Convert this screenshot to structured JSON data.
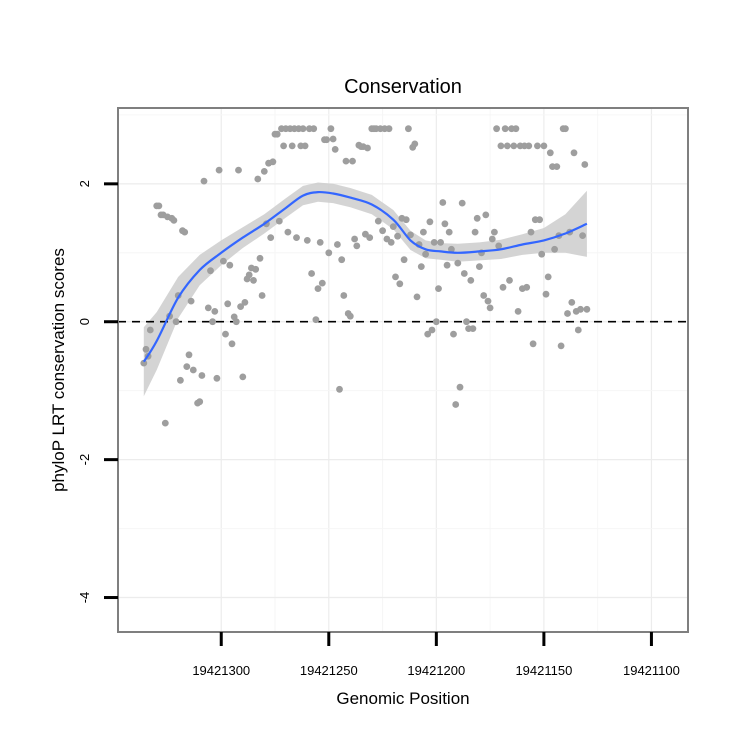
{
  "chart_data": {
    "type": "scatter",
    "title": "Conservation",
    "xlabel": "Genomic Position",
    "ylabel": "phyloP LRT conservation scores",
    "x_reversed": true,
    "xlim": [
      19421083,
      19421348
    ],
    "ylim": [
      -4.5,
      3.1
    ],
    "x_ticks": [
      19421300,
      19421250,
      19421200,
      19421150,
      19421100
    ],
    "x_tick_labels": [
      "19421300",
      "19421250",
      "19421200",
      "19421150",
      "19421100"
    ],
    "y_ticks": [
      2,
      0,
      -2,
      -4
    ],
    "y_tick_labels": [
      "2",
      "0",
      "-2",
      "-4"
    ],
    "reference_line": {
      "y": 0,
      "style": "dashed"
    },
    "grid": true,
    "colors": {
      "points": "#9e9e9e",
      "smooth": "#3366ff",
      "band": "#cccccc",
      "border": "#7f7f7f"
    },
    "points": [
      [
        19421336,
        -0.6
      ],
      [
        19421335,
        -0.4
      ],
      [
        19421334,
        -0.5
      ],
      [
        19421333,
        -0.12
      ],
      [
        19421330,
        1.68
      ],
      [
        19421329,
        1.68
      ],
      [
        19421328,
        1.55
      ],
      [
        19421327,
        1.55
      ],
      [
        19421325,
        1.52
      ],
      [
        19421326,
        -1.47
      ],
      [
        19421324,
        0.08
      ],
      [
        19421323,
        1.5
      ],
      [
        19421322,
        1.47
      ],
      [
        19421321,
        0.0
      ],
      [
        19421320,
        0.38
      ],
      [
        19421318,
        1.32
      ],
      [
        19421317,
        1.3
      ],
      [
        19421319,
        -0.85
      ],
      [
        19421316,
        -0.65
      ],
      [
        19421315,
        -0.48
      ],
      [
        19421314,
        0.3
      ],
      [
        19421313,
        -0.7
      ],
      [
        19421311,
        -1.18
      ],
      [
        19421310,
        -1.16
      ],
      [
        19421309,
        -0.78
      ],
      [
        19421308,
        2.04
      ],
      [
        19421306,
        0.2
      ],
      [
        19421305,
        0.74
      ],
      [
        19421304,
        0.0
      ],
      [
        19421303,
        0.15
      ],
      [
        19421302,
        -0.82
      ],
      [
        19421301,
        2.2
      ],
      [
        19421299,
        0.88
      ],
      [
        19421298,
        -0.18
      ],
      [
        19421297,
        0.26
      ],
      [
        19421296,
        0.82
      ],
      [
        19421295,
        -0.32
      ],
      [
        19421294,
        0.07
      ],
      [
        19421293,
        0.0
      ],
      [
        19421292,
        2.2
      ],
      [
        19421291,
        0.22
      ],
      [
        19421290,
        -0.8
      ],
      [
        19421289,
        0.28
      ],
      [
        19421288,
        0.62
      ],
      [
        19421287,
        0.68
      ],
      [
        19421286,
        0.78
      ],
      [
        19421285,
        0.6
      ],
      [
        19421284,
        0.76
      ],
      [
        19421283,
        2.07
      ],
      [
        19421282,
        0.92
      ],
      [
        19421281,
        0.38
      ],
      [
        19421280,
        2.18
      ],
      [
        19421279,
        1.42
      ],
      [
        19421278,
        2.3
      ],
      [
        19421277,
        1.22
      ],
      [
        19421276,
        2.32
      ],
      [
        19421275,
        2.72
      ],
      [
        19421274,
        2.72
      ],
      [
        19421273,
        1.46
      ],
      [
        19421272,
        2.8
      ],
      [
        19421271,
        2.55
      ],
      [
        19421270,
        2.8
      ],
      [
        19421269,
        1.3
      ],
      [
        19421268,
        2.8
      ],
      [
        19421267,
        2.55
      ],
      [
        19421266,
        2.8
      ],
      [
        19421265,
        1.22
      ],
      [
        19421264,
        2.8
      ],
      [
        19421263,
        2.55
      ],
      [
        19421262,
        2.8
      ],
      [
        19421261,
        2.55
      ],
      [
        19421260,
        1.18
      ],
      [
        19421259,
        2.8
      ],
      [
        19421258,
        0.7
      ],
      [
        19421257,
        2.8
      ],
      [
        19421256,
        0.03
      ],
      [
        19421255,
        0.48
      ],
      [
        19421254,
        1.15
      ],
      [
        19421253,
        0.56
      ],
      [
        19421252,
        2.64
      ],
      [
        19421251,
        2.64
      ],
      [
        19421250,
        1.0
      ],
      [
        19421249,
        2.8
      ],
      [
        19421248,
        2.65
      ],
      [
        19421247,
        2.5
      ],
      [
        19421246,
        1.12
      ],
      [
        19421245,
        -0.98
      ],
      [
        19421244,
        0.9
      ],
      [
        19421243,
        0.38
      ],
      [
        19421242,
        2.33
      ],
      [
        19421241,
        0.12
      ],
      [
        19421240,
        0.08
      ],
      [
        19421239,
        2.33
      ],
      [
        19421238,
        1.2
      ],
      [
        19421237,
        1.1
      ],
      [
        19421236,
        2.56
      ],
      [
        19421235,
        2.54
      ],
      [
        19421234,
        2.54
      ],
      [
        19421233,
        1.27
      ],
      [
        19421232,
        2.52
      ],
      [
        19421231,
        1.22
      ],
      [
        19421230,
        2.8
      ],
      [
        19421229,
        2.8
      ],
      [
        19421228,
        2.8
      ],
      [
        19421227,
        1.46
      ],
      [
        19421226,
        2.8
      ],
      [
        19421225,
        1.32
      ],
      [
        19421224,
        2.8
      ],
      [
        19421223,
        1.2
      ],
      [
        19421222,
        2.8
      ],
      [
        19421221,
        1.15
      ],
      [
        19421220,
        1.38
      ],
      [
        19421219,
        0.65
      ],
      [
        19421218,
        1.24
      ],
      [
        19421217,
        0.55
      ],
      [
        19421216,
        1.5
      ],
      [
        19421215,
        0.9
      ],
      [
        19421214,
        1.48
      ],
      [
        19421213,
        2.8
      ],
      [
        19421212,
        1.26
      ],
      [
        19421211,
        2.53
      ],
      [
        19421210,
        2.58
      ],
      [
        19421209,
        0.36
      ],
      [
        19421208,
        1.12
      ],
      [
        19421207,
        0.8
      ],
      [
        19421206,
        1.3
      ],
      [
        19421205,
        0.98
      ],
      [
        19421204,
        -0.18
      ],
      [
        19421203,
        1.45
      ],
      [
        19421202,
        -0.12
      ],
      [
        19421201,
        1.15
      ],
      [
        19421200,
        0.0
      ],
      [
        19421199,
        0.48
      ],
      [
        19421198,
        1.15
      ],
      [
        19421197,
        1.73
      ],
      [
        19421196,
        1.42
      ],
      [
        19421195,
        0.82
      ],
      [
        19421194,
        1.3
      ],
      [
        19421193,
        1.05
      ],
      [
        19421192,
        -0.18
      ],
      [
        19421191,
        -1.2
      ],
      [
        19421190,
        0.85
      ],
      [
        19421189,
        -0.95
      ],
      [
        19421188,
        1.72
      ],
      [
        19421187,
        0.7
      ],
      [
        19421186,
        0.0
      ],
      [
        19421185,
        -0.1
      ],
      [
        19421184,
        0.6
      ],
      [
        19421183,
        -0.1
      ],
      [
        19421182,
        1.3
      ],
      [
        19421181,
        1.5
      ],
      [
        19421180,
        0.8
      ],
      [
        19421179,
        1.0
      ],
      [
        19421178,
        0.38
      ],
      [
        19421177,
        1.55
      ],
      [
        19421176,
        0.3
      ],
      [
        19421175,
        0.2
      ],
      [
        19421174,
        1.2
      ],
      [
        19421173,
        1.3
      ],
      [
        19421172,
        2.8
      ],
      [
        19421171,
        1.1
      ],
      [
        19421170,
        2.55
      ],
      [
        19421169,
        0.5
      ],
      [
        19421168,
        2.8
      ],
      [
        19421167,
        2.55
      ],
      [
        19421166,
        0.6
      ],
      [
        19421165,
        2.8
      ],
      [
        19421164,
        2.55
      ],
      [
        19421163,
        2.8
      ],
      [
        19421162,
        0.15
      ],
      [
        19421161,
        2.55
      ],
      [
        19421160,
        0.48
      ],
      [
        19421159,
        2.55
      ],
      [
        19421158,
        0.5
      ],
      [
        19421157,
        2.55
      ],
      [
        19421156,
        1.3
      ],
      [
        19421155,
        -0.32
      ],
      [
        19421154,
        1.48
      ],
      [
        19421153,
        2.55
      ],
      [
        19421152,
        1.48
      ],
      [
        19421151,
        0.98
      ],
      [
        19421150,
        2.55
      ],
      [
        19421149,
        0.4
      ],
      [
        19421148,
        0.65
      ],
      [
        19421147,
        2.45
      ],
      [
        19421146,
        2.25
      ],
      [
        19421145,
        1.05
      ],
      [
        19421144,
        2.25
      ],
      [
        19421143,
        1.25
      ],
      [
        19421142,
        -0.35
      ],
      [
        19421141,
        2.8
      ],
      [
        19421140,
        2.8
      ],
      [
        19421139,
        0.12
      ],
      [
        19421138,
        1.3
      ],
      [
        19421137,
        0.28
      ],
      [
        19421136,
        2.45
      ],
      [
        19421135,
        0.15
      ],
      [
        19421134,
        -0.12
      ],
      [
        19421133,
        0.18
      ],
      [
        19421132,
        1.25
      ],
      [
        19421131,
        2.28
      ],
      [
        19421130,
        0.18
      ]
    ],
    "smooth_x": [
      19421336,
      19421330,
      19421320,
      19421310,
      19421300,
      19421290,
      19421280,
      19421270,
      19421262,
      19421255,
      19421248,
      19421240,
      19421230,
      19421220,
      19421212,
      19421205,
      19421198,
      19421190,
      19421180,
      19421170,
      19421160,
      19421150,
      19421140,
      19421130
    ],
    "smooth_y": [
      -0.58,
      -0.28,
      0.35,
      0.75,
      1.0,
      1.22,
      1.42,
      1.65,
      1.83,
      1.88,
      1.86,
      1.8,
      1.7,
      1.48,
      1.18,
      1.05,
      1.02,
      1.0,
      1.02,
      1.05,
      1.12,
      1.18,
      1.28,
      1.42
    ],
    "band_halfwidth": [
      0.5,
      0.42,
      0.3,
      0.22,
      0.18,
      0.15,
      0.14,
      0.14,
      0.14,
      0.14,
      0.14,
      0.14,
      0.14,
      0.14,
      0.14,
      0.13,
      0.12,
      0.13,
      0.13,
      0.14,
      0.15,
      0.18,
      0.28,
      0.48
    ]
  }
}
